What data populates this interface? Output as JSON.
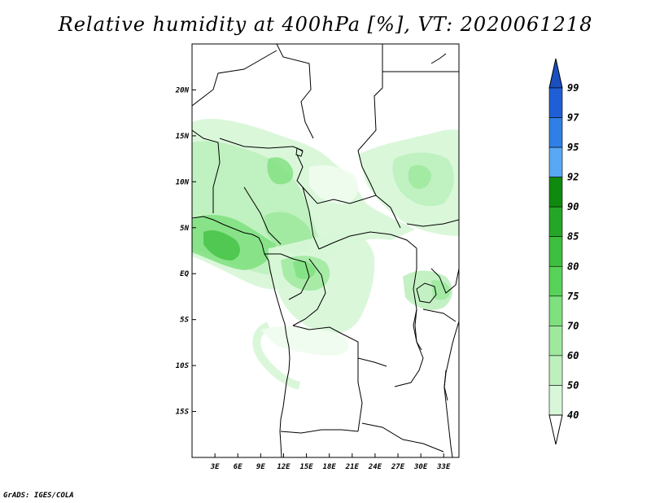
{
  "title": "Relative humidity at 400hPa [%], VT: 2020061218",
  "credit": "GrADS: IGES/COLA",
  "map": {
    "lon_range": [
      0,
      35
    ],
    "lat_range": [
      -20,
      25
    ],
    "lat_ticks": [
      "20N",
      "15N",
      "10N",
      "5N",
      "EQ",
      "5S",
      "10S",
      "15S"
    ],
    "lat_tick_values": [
      20,
      15,
      10,
      5,
      0,
      -5,
      -10,
      -15
    ],
    "lon_ticks": [
      "3E",
      "6E",
      "9E",
      "12E",
      "15E",
      "18E",
      "21E",
      "24E",
      "27E",
      "30E",
      "33E"
    ],
    "lon_tick_values": [
      3,
      6,
      9,
      12,
      15,
      18,
      21,
      24,
      27,
      30,
      33
    ]
  },
  "colorbar": {
    "levels": [
      "99",
      "97",
      "95",
      "92",
      "90",
      "85",
      "80",
      "75",
      "70",
      "60",
      "50",
      "40"
    ],
    "colors": [
      "#1f5fd6",
      "#2f7fe6",
      "#58a8f4",
      "#0f8a0f",
      "#26a626",
      "#3fbf3f",
      "#58d258",
      "#7ee07e",
      "#9ee99e",
      "#bdf0bd",
      "#d8f7d8",
      "#eefcee"
    ],
    "top_arrow_color": "#1a4fc0"
  }
}
